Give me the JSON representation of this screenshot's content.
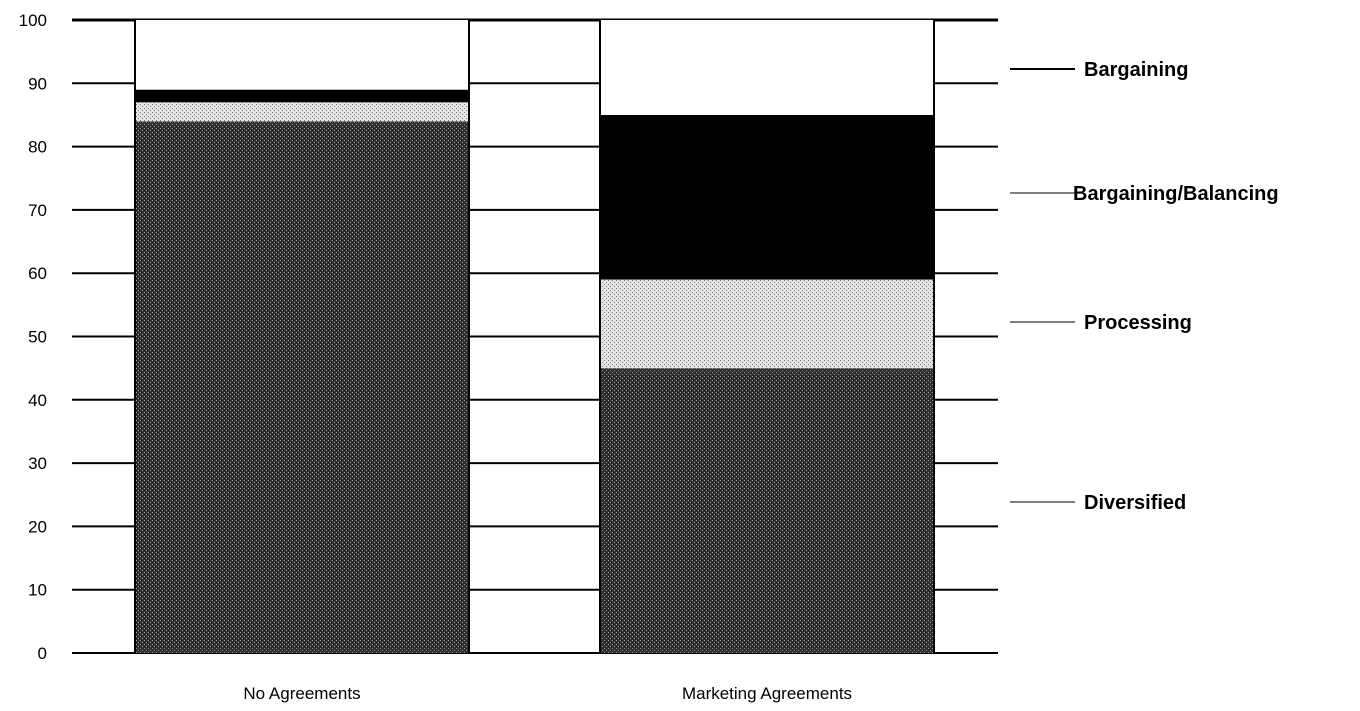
{
  "chart_data": {
    "type": "bar",
    "stacked": true,
    "categories": [
      "No Agreements",
      "Marketing Agreements"
    ],
    "series": [
      {
        "name": "Diversified",
        "values": [
          84,
          45
        ],
        "pattern": "dense-dots",
        "color": "#444444"
      },
      {
        "name": "Processing",
        "values": [
          3,
          14
        ],
        "pattern": "light-dots",
        "color": "#cfcfcf"
      },
      {
        "name": "Bargaining/Balancing",
        "values": [
          2,
          26
        ],
        "pattern": "solid",
        "color": "#000000"
      },
      {
        "name": "Bargaining",
        "values": [
          11,
          15
        ],
        "pattern": "none",
        "color": "#ffffff"
      }
    ],
    "y_ticks": [
      "0",
      "10",
      "20",
      "30",
      "40",
      "50",
      "60",
      "70",
      "80",
      "90",
      "100"
    ],
    "ylim": [
      0,
      100
    ],
    "grid": true,
    "legend_position": "right",
    "title": "",
    "xlabel": "",
    "ylabel": ""
  }
}
